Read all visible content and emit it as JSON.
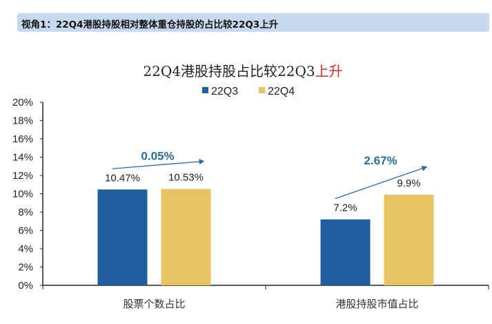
{
  "header": {
    "text": "视角1：22Q4港股持股相对整体重仓持股的占比较22Q3上升"
  },
  "chart_data": {
    "type": "bar",
    "title": "22Q4港股持股占比较22Q3",
    "title_highlight": "上升",
    "title_highlight_color": "#d9302c",
    "categories": [
      "股票个数占比",
      "港股持股市值占比"
    ],
    "series": [
      {
        "name": "22Q3",
        "values": [
          10.47,
          7.2
        ],
        "labels": [
          "10.47%",
          "7.2%"
        ],
        "color": "#1f5f9e"
      },
      {
        "name": "22Q4",
        "values": [
          10.53,
          9.9
        ],
        "labels": [
          "10.53%",
          "9.9%"
        ],
        "color": "#e6c463"
      }
    ],
    "annotations": [
      "0.05%",
      "2.67%"
    ],
    "annotation_color": "#2a6d9c",
    "ylim": [
      0,
      20
    ],
    "yticks": [
      "0%",
      "2%",
      "4%",
      "6%",
      "8%",
      "10%",
      "12%",
      "14%",
      "16%",
      "18%",
      "20%"
    ],
    "legend": "top-center",
    "grid": false
  }
}
